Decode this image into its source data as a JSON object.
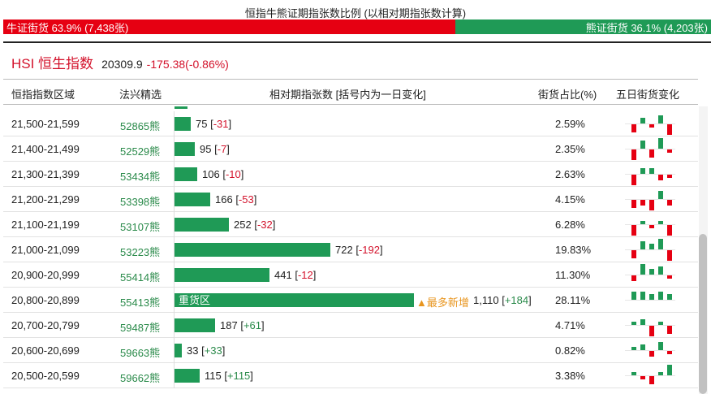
{
  "top_title": "恒指牛熊证期指张数比例 (以相对期指张数计算)",
  "ratio": {
    "bull_label": "牛证街货 63.9% (7,438张)",
    "bear_label": "熊证街货 36.1% (4,203张)",
    "bull_fraction": 0.639,
    "bull_color": "#e60012",
    "bear_color": "#1f9a56"
  },
  "index": {
    "name": "HSI 恒生指数",
    "value": "20309.9",
    "change": "-175.38(-0.86%)"
  },
  "headers": {
    "zone": "恒指指数区域",
    "warrant": "法兴精选",
    "contracts": "相对期指张数 [括号内为一日变化]",
    "share": "街货占比(%)",
    "trend": "五日街货变化"
  },
  "rows": [
    {
      "zone": "21,500-21,599",
      "warrant": "52865熊",
      "count": "75",
      "delta": "-31",
      "share": "2.59%",
      "contracts": 75,
      "trend": [
        -3,
        2,
        -1,
        3,
        -4
      ]
    },
    {
      "zone": "21,400-21,499",
      "warrant": "52529熊",
      "count": "95",
      "delta": "-7",
      "share": "2.35%",
      "contracts": 95,
      "trend": [
        -4,
        3,
        -3,
        4,
        -1
      ]
    },
    {
      "zone": "21,300-21,399",
      "warrant": "53434熊",
      "count": "106",
      "delta": "-10",
      "share": "2.63%",
      "contracts": 106,
      "trend": [
        -4,
        2,
        2,
        -2,
        -1
      ]
    },
    {
      "zone": "21,200-21,299",
      "warrant": "53398熊",
      "count": "166",
      "delta": "-53",
      "share": "4.15%",
      "contracts": 166,
      "trend": [
        -3,
        -2,
        -4,
        3,
        -2
      ]
    },
    {
      "zone": "21,100-21,199",
      "warrant": "53107熊",
      "count": "252",
      "delta": "-32",
      "share": "6.28%",
      "contracts": 252,
      "trend": [
        -4,
        1,
        -1,
        1,
        -4
      ]
    },
    {
      "zone": "21,000-21,099",
      "warrant": "53223熊",
      "count": "722",
      "delta": "-192",
      "share": "19.83%",
      "contracts": 722,
      "trend": [
        -3,
        3,
        2,
        4,
        -4
      ]
    },
    {
      "zone": "20,900-20,999",
      "warrant": "55414熊",
      "count": "441",
      "delta": "-12",
      "share": "11.30%",
      "contracts": 441,
      "trend": [
        -2,
        4,
        2,
        3,
        -1
      ]
    },
    {
      "zone": "20,800-20,899",
      "warrant": "55413熊",
      "count": "1,110",
      "delta": "+184",
      "share": "28.11%",
      "contracts": 1110,
      "heavy_label": "重货区",
      "hot_label": "▲最多新增",
      "trend": [
        3,
        3,
        2,
        3,
        2
      ]
    },
    {
      "zone": "20,700-20,799",
      "warrant": "59487熊",
      "count": "187",
      "delta": "+61",
      "share": "4.71%",
      "contracts": 187,
      "trend": [
        1,
        2,
        -4,
        1,
        -3
      ]
    },
    {
      "zone": "20,600-20,699",
      "warrant": "59663熊",
      "count": "33",
      "delta": "+33",
      "share": "0.82%",
      "contracts": 33,
      "trend": [
        1,
        2,
        -2,
        3,
        -1
      ]
    },
    {
      "zone": "20,500-20,599",
      "warrant": "59662熊",
      "count": "115",
      "delta": "+115",
      "share": "3.38%",
      "contracts": 115,
      "trend": [
        1,
        -1,
        -3,
        1,
        4
      ]
    }
  ],
  "colors": {
    "bar_green": "#1f9a56",
    "trend_up": "#1f9a56",
    "trend_down": "#e60012",
    "hot_orange": "#e8951e"
  }
}
